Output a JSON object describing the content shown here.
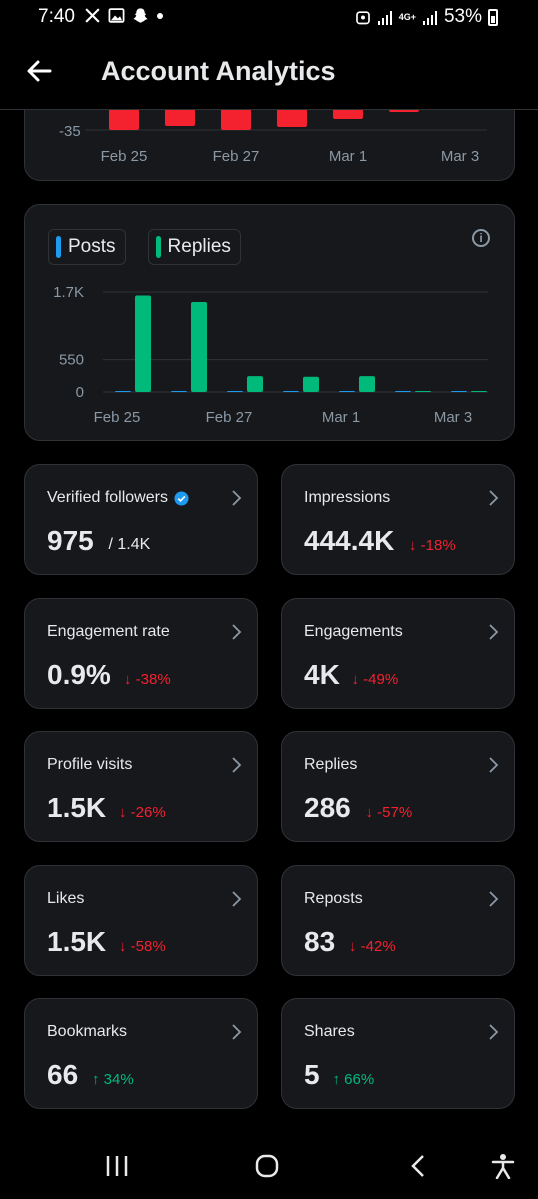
{
  "status_bar": {
    "time": "7:40",
    "icons_left": [
      "x-logo-icon",
      "gallery-icon",
      "snapchat-icon",
      "dot-icon"
    ],
    "network": "4G+",
    "battery": "53%"
  },
  "header": {
    "title": "Account Analytics"
  },
  "top_chart": {
    "type": "bar",
    "y_tick": "-35",
    "x_ticks": [
      "Feb 25",
      "Feb 27",
      "Mar 1",
      "Mar 3"
    ],
    "color": "#f4212e"
  },
  "chart_data": {
    "type": "bar",
    "categories": [
      "Feb 25",
      "Feb 26",
      "Feb 27",
      "Feb 28",
      "Mar 1",
      "Mar 2",
      "Mar 3"
    ],
    "x_tick_labels": [
      "Feb 25",
      "Feb 27",
      "Mar 1",
      "Mar 3"
    ],
    "y_tick_labels": [
      "1.7K",
      "550",
      "0"
    ],
    "y_ticks": [
      1700,
      550,
      0
    ],
    "ylim": [
      0,
      1700
    ],
    "series": [
      {
        "name": "Posts",
        "color": "#1d9bf0",
        "values": [
          2,
          2,
          2,
          0,
          0,
          0,
          0
        ]
      },
      {
        "name": "Replies",
        "color": "#00ba7c",
        "values": [
          1640,
          1530,
          270,
          260,
          270,
          15,
          15
        ]
      }
    ],
    "legend_position": "top-left",
    "grid": true
  },
  "stats": [
    {
      "label": "Verified followers",
      "value": "975",
      "suffix": "/ 1.4K",
      "verified": true
    },
    {
      "label": "Impressions",
      "value": "444.4K",
      "change": "-18%",
      "direction": "down"
    },
    {
      "label": "Engagement rate",
      "value": "0.9%",
      "change": "-38%",
      "direction": "down"
    },
    {
      "label": "Engagements",
      "value": "4K",
      "change": "-49%",
      "direction": "down"
    },
    {
      "label": "Profile visits",
      "value": "1.5K",
      "change": "-26%",
      "direction": "down"
    },
    {
      "label": "Replies",
      "value": "286",
      "change": "-57%",
      "direction": "down"
    },
    {
      "label": "Likes",
      "value": "1.5K",
      "change": "-58%",
      "direction": "down"
    },
    {
      "label": "Reposts",
      "value": "83",
      "change": "-42%",
      "direction": "down"
    },
    {
      "label": "Bookmarks",
      "value": "66",
      "change": "34%",
      "direction": "up"
    },
    {
      "label": "Shares",
      "value": "5",
      "change": "66%",
      "direction": "up"
    }
  ],
  "colors": {
    "background": "#000000",
    "card": "#16181c",
    "border": "#2f3336",
    "text": "#e7e9ea",
    "muted": "#8b98a5",
    "down": "#f4212e",
    "up": "#00ba7c",
    "posts": "#1d9bf0",
    "replies": "#00ba7c"
  }
}
